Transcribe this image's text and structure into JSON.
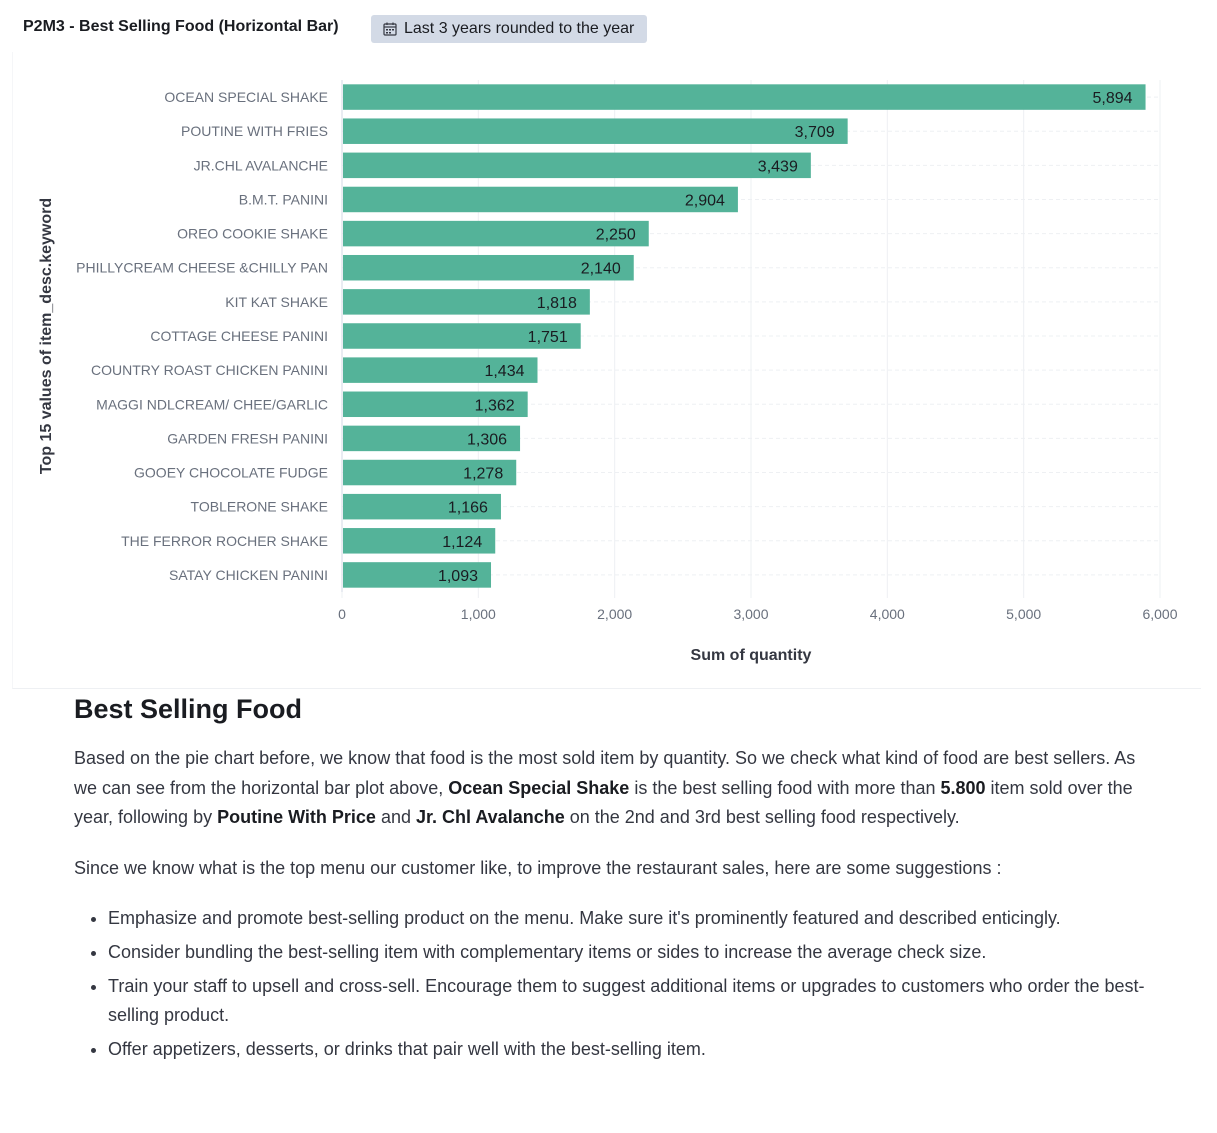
{
  "panel": {
    "title": "P2M3 - Best Selling Food (Horizontal Bar)",
    "time_range": "Last 3 years rounded to the year",
    "time_icon": "calendar-icon"
  },
  "chart_data": {
    "type": "bar",
    "orientation": "horizontal",
    "categories": [
      "OCEAN SPECIAL SHAKE",
      "POUTINE WITH FRIES",
      "JR.CHL AVALANCHE",
      "B.M.T. PANINI",
      "OREO COOKIE SHAKE",
      "PHILLYCREAM CHEESE &CHILLY PAN",
      "KIT KAT SHAKE",
      "COTTAGE CHEESE PANINI",
      "COUNTRY ROAST CHICKEN PANINI",
      "MAGGI NDLCREAM/ CHEE/GARLIC",
      "GARDEN FRESH PANINI",
      "GOOEY CHOCOLATE FUDGE",
      "TOBLERONE SHAKE",
      "THE FERROR ROCHER SHAKE",
      "SATAY CHICKEN PANINI"
    ],
    "values": [
      5894,
      3709,
      3439,
      2904,
      2250,
      2140,
      1818,
      1751,
      1434,
      1362,
      1306,
      1278,
      1166,
      1124,
      1093
    ],
    "value_labels": [
      "5,894",
      "3,709",
      "3,439",
      "2,904",
      "2,250",
      "2,140",
      "1,818",
      "1,751",
      "1,434",
      "1,362",
      "1,306",
      "1,278",
      "1,166",
      "1,124",
      "1,093"
    ],
    "xlabel": "Sum of quantity",
    "ylabel": "Top 15 values of item_desc.keyword",
    "xlim": [
      0,
      6000
    ],
    "x_ticks": [
      0,
      1000,
      2000,
      3000,
      4000,
      5000,
      6000
    ],
    "x_tick_labels": [
      "0",
      "1,000",
      "2,000",
      "3,000",
      "4,000",
      "5,000",
      "6,000"
    ],
    "grid": true,
    "bar_color": "#54b399"
  },
  "markdown": {
    "heading": "Best Selling Food",
    "p1": {
      "t1": "Based on the pie chart before, we know that food is the most sold item by quantity. So we check what kind of food are best sellers. As we can see from the horizontal bar plot above, ",
      "b1": "Ocean Special Shake",
      "t2": " is the best selling food with more than ",
      "b2": "5.800",
      "t3": " item sold over the year, following by ",
      "b3": "Poutine With Price",
      "t4": " and ",
      "b4": "Jr. Chl Avalanche",
      "t5": " on the 2nd and 3rd best selling food respectively."
    },
    "p2": "Since we know what is the top menu our customer like, to improve the restaurant sales, here are some suggestions :",
    "bullets": [
      "Emphasize and promote best-selling product on the menu. Make sure it's prominently featured and described enticingly.",
      "Consider bundling the best-selling item with complementary items or sides to increase the average check size.",
      "Train your staff to upsell and cross-sell. Encourage them to suggest additional items or upgrades to customers who order the best-selling product.",
      "Offer appetizers, desserts, or drinks that pair well with the best-selling item."
    ]
  }
}
